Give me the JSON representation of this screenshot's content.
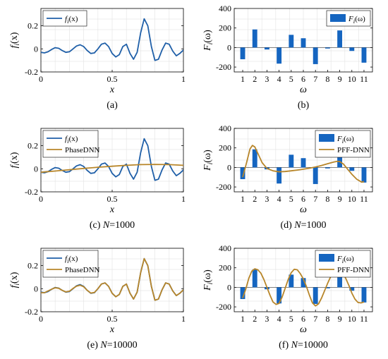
{
  "colors": {
    "target": "#1f5fa8",
    "approx": "#b8862a",
    "bar": "#1565c0",
    "grid": "#e6e6e6"
  },
  "chart_data": [
    {
      "type": "line",
      "caption": "(a)",
      "xlabel": "x",
      "ylabel_base": "f",
      "ylabel_sub": "i",
      "ylabel_tail": "(x)",
      "xlim": [
        0,
        1
      ],
      "ylim": [
        -0.2,
        0.35
      ],
      "xticks": [
        0,
        0.5,
        1
      ],
      "xtick_labels": [
        "0",
        "0.5",
        "1"
      ],
      "yticks": [
        -0.2,
        0,
        0.2
      ],
      "ytick_labels": [
        "-0.2",
        "0",
        "0.2"
      ],
      "grid": true,
      "legend": "top-left",
      "series": [
        {
          "label_base": "f",
          "label_sub": "i",
          "label_tail": "(x)",
          "color_key": "target",
          "x": [
            0,
            0.025,
            0.05,
            0.075,
            0.1,
            0.125,
            0.15,
            0.175,
            0.2,
            0.225,
            0.25,
            0.275,
            0.3,
            0.325,
            0.35,
            0.375,
            0.4,
            0.425,
            0.45,
            0.475,
            0.5,
            0.525,
            0.55,
            0.575,
            0.6,
            0.625,
            0.65,
            0.675,
            0.7,
            0.725,
            0.75,
            0.775,
            0.8,
            0.825,
            0.85,
            0.875,
            0.9,
            0.925,
            0.95,
            0.975,
            1
          ],
          "y": [
            -0.03,
            -0.035,
            -0.025,
            -0.005,
            0.01,
            0.005,
            -0.015,
            -0.03,
            -0.025,
            0,
            0.025,
            0.035,
            0.02,
            -0.015,
            -0.04,
            -0.035,
            0,
            0.04,
            0.05,
            0.02,
            -0.04,
            -0.07,
            -0.05,
            0.02,
            0.04,
            -0.04,
            -0.09,
            -0.03,
            0.14,
            0.26,
            0.2,
            0.02,
            -0.1,
            -0.09,
            -0.01,
            0.05,
            0.04,
            -0.02,
            -0.06,
            -0.04,
            -0.01
          ]
        }
      ]
    },
    {
      "type": "bar",
      "caption": "(b)",
      "xlabel": "ω",
      "ylabel_base": "F",
      "ylabel_sub": "i",
      "ylabel_tail": "(ω)",
      "categories": [
        "1",
        "2",
        "3",
        "4",
        "5",
        "6",
        "7",
        "8",
        "9",
        "10",
        "11"
      ],
      "xlim": [
        0.3,
        11.7
      ],
      "ylim": [
        -250,
        400
      ],
      "yticks": [
        -200,
        0,
        200,
        400
      ],
      "ytick_labels": [
        "-200",
        "0",
        "200",
        "400"
      ],
      "grid": true,
      "legend": "top-right",
      "series": [
        {
          "label_base": "F",
          "label_sub": "i",
          "label_tail": "(ω)",
          "color_key": "bar",
          "values": [
            -120,
            185,
            -20,
            -165,
            130,
            95,
            -170,
            -10,
            175,
            -35,
            -155
          ]
        }
      ]
    },
    {
      "type": "line",
      "caption_prefix": "(c) ",
      "caption_var": "N",
      "caption_suffix": "=1000",
      "xlabel": "x",
      "ylabel_base": "f",
      "ylabel_sub": "i",
      "ylabel_tail": "(x)",
      "xlim": [
        0,
        1
      ],
      "ylim": [
        -0.2,
        0.35
      ],
      "xticks": [
        0,
        0.5,
        1
      ],
      "xtick_labels": [
        "0",
        "0.5",
        "1"
      ],
      "yticks": [
        -0.2,
        0,
        0.2
      ],
      "ytick_labels": [
        "-0.2",
        "0",
        "0.2"
      ],
      "grid": true,
      "legend": "top-left",
      "series": [
        {
          "label_base": "f",
          "label_sub": "i",
          "label_tail": "(x)",
          "color_key": "target",
          "x": [
            0,
            0.025,
            0.05,
            0.075,
            0.1,
            0.125,
            0.15,
            0.175,
            0.2,
            0.225,
            0.25,
            0.275,
            0.3,
            0.325,
            0.35,
            0.375,
            0.4,
            0.425,
            0.45,
            0.475,
            0.5,
            0.525,
            0.55,
            0.575,
            0.6,
            0.625,
            0.65,
            0.675,
            0.7,
            0.725,
            0.75,
            0.775,
            0.8,
            0.825,
            0.85,
            0.875,
            0.9,
            0.925,
            0.95,
            0.975,
            1
          ],
          "y": [
            -0.03,
            -0.035,
            -0.025,
            -0.005,
            0.01,
            0.005,
            -0.015,
            -0.03,
            -0.025,
            0,
            0.025,
            0.035,
            0.02,
            -0.015,
            -0.04,
            -0.035,
            0,
            0.04,
            0.05,
            0.02,
            -0.04,
            -0.07,
            -0.05,
            0.02,
            0.04,
            -0.04,
            -0.09,
            -0.03,
            0.14,
            0.26,
            0.2,
            0.02,
            -0.1,
            -0.09,
            -0.01,
            0.05,
            0.04,
            -0.02,
            -0.06,
            -0.04,
            -0.01
          ]
        },
        {
          "label": "PhaseDNN",
          "color_key": "approx",
          "x": [
            0,
            0.1,
            0.2,
            0.3,
            0.4,
            0.5,
            0.6,
            0.7,
            0.8,
            0.9,
            1
          ],
          "y": [
            -0.03,
            -0.02,
            -0.008,
            0.003,
            0.013,
            0.022,
            0.03,
            0.036,
            0.038,
            0.036,
            0.03
          ]
        }
      ]
    },
    {
      "type": "bar",
      "caption_prefix": "(d) ",
      "caption_var": "N",
      "caption_suffix": "=1000",
      "xlabel": "ω",
      "ylabel_base": "F",
      "ylabel_sub": "i",
      "ylabel_tail": "(ω)",
      "categories": [
        "1",
        "2",
        "3",
        "4",
        "5",
        "6",
        "7",
        "8",
        "9",
        "10",
        "11"
      ],
      "xlim": [
        0.3,
        11.7
      ],
      "ylim": [
        -250,
        400
      ],
      "yticks": [
        -200,
        0,
        200,
        400
      ],
      "ytick_labels": [
        "-200",
        "0",
        "200",
        "400"
      ],
      "grid": true,
      "legend": "top-right",
      "series": [
        {
          "label_base": "F",
          "label_sub": "i",
          "label_tail": "(ω)",
          "color_key": "bar",
          "values": [
            -120,
            185,
            -20,
            -165,
            130,
            95,
            -170,
            -10,
            175,
            -35,
            -155
          ]
        }
      ],
      "curve": {
        "label": "PFF-DNN",
        "color_key": "approx",
        "x": [
          1,
          1.3,
          1.6,
          1.8,
          2.0,
          2.3,
          2.6,
          3.0,
          3.5,
          4.0,
          4.5,
          5.0,
          5.5,
          6.0,
          6.5,
          7.0,
          7.5,
          8.0,
          8.5,
          8.8,
          9.0,
          9.3,
          9.6,
          10.0,
          10.4,
          10.8,
          11.0
        ],
        "y": [
          -100,
          40,
          190,
          225,
          210,
          130,
          50,
          -10,
          -35,
          -45,
          -42,
          -35,
          -27,
          -18,
          -8,
          5,
          20,
          38,
          55,
          62,
          60,
          35,
          -10,
          -70,
          -120,
          -150,
          -145
        ]
      }
    },
    {
      "type": "line",
      "caption_prefix": "(e) ",
      "caption_var": "N",
      "caption_suffix": "=10000",
      "xlabel": "x",
      "ylabel_base": "f",
      "ylabel_sub": "i",
      "ylabel_tail": "(x)",
      "xlim": [
        0,
        1
      ],
      "ylim": [
        -0.2,
        0.35
      ],
      "xticks": [
        0,
        0.5,
        1
      ],
      "xtick_labels": [
        "0",
        "0.5",
        "1"
      ],
      "yticks": [
        -0.2,
        0,
        0.2
      ],
      "ytick_labels": [
        "-0.2",
        "0",
        "0.2"
      ],
      "grid": true,
      "legend": "top-left",
      "series": [
        {
          "label_base": "f",
          "label_sub": "i",
          "label_tail": "(x)",
          "color_key": "target",
          "x": [
            0,
            0.025,
            0.05,
            0.075,
            0.1,
            0.125,
            0.15,
            0.175,
            0.2,
            0.225,
            0.25,
            0.275,
            0.3,
            0.325,
            0.35,
            0.375,
            0.4,
            0.425,
            0.45,
            0.475,
            0.5,
            0.525,
            0.55,
            0.575,
            0.6,
            0.625,
            0.65,
            0.675,
            0.7,
            0.725,
            0.75,
            0.775,
            0.8,
            0.825,
            0.85,
            0.875,
            0.9,
            0.925,
            0.95,
            0.975,
            1
          ],
          "y": [
            -0.03,
            -0.035,
            -0.025,
            -0.005,
            0.01,
            0.005,
            -0.015,
            -0.03,
            -0.025,
            0,
            0.025,
            0.035,
            0.02,
            -0.015,
            -0.04,
            -0.035,
            0,
            0.04,
            0.05,
            0.02,
            -0.04,
            -0.07,
            -0.05,
            0.02,
            0.04,
            -0.04,
            -0.09,
            -0.03,
            0.14,
            0.26,
            0.2,
            0.02,
            -0.1,
            -0.09,
            -0.01,
            0.05,
            0.04,
            -0.02,
            -0.06,
            -0.04,
            -0.01
          ]
        },
        {
          "label": "PhaseDNN",
          "color_key": "approx",
          "x": [
            0,
            0.025,
            0.05,
            0.075,
            0.1,
            0.125,
            0.15,
            0.175,
            0.2,
            0.225,
            0.25,
            0.275,
            0.3,
            0.325,
            0.35,
            0.375,
            0.4,
            0.425,
            0.45,
            0.475,
            0.5,
            0.525,
            0.55,
            0.575,
            0.6,
            0.625,
            0.65,
            0.675,
            0.7,
            0.725,
            0.75,
            0.775,
            0.8,
            0.825,
            0.85,
            0.875,
            0.9,
            0.925,
            0.95,
            0.975,
            1
          ],
          "y": [
            -0.035,
            -0.035,
            -0.02,
            -0.005,
            0.008,
            0.003,
            -0.015,
            -0.028,
            -0.022,
            0.002,
            0.022,
            0.03,
            0.017,
            -0.015,
            -0.038,
            -0.033,
            0,
            0.04,
            0.05,
            0.02,
            -0.04,
            -0.07,
            -0.05,
            0.02,
            0.04,
            -0.04,
            -0.09,
            -0.03,
            0.14,
            0.26,
            0.2,
            0.02,
            -0.1,
            -0.09,
            -0.01,
            0.05,
            0.04,
            -0.02,
            -0.06,
            -0.04,
            -0.01
          ]
        }
      ]
    },
    {
      "type": "bar",
      "caption_prefix": "(f) ",
      "caption_var": "N",
      "caption_suffix": "=10000",
      "xlabel": "ω",
      "ylabel_base": "F",
      "ylabel_sub": "i",
      "ylabel_tail": "(ω)",
      "categories": [
        "1",
        "2",
        "3",
        "4",
        "5",
        "6",
        "7",
        "8",
        "9",
        "10",
        "11"
      ],
      "xlim": [
        0.3,
        11.7
      ],
      "ylim": [
        -250,
        400
      ],
      "yticks": [
        -200,
        0,
        200,
        400
      ],
      "ytick_labels": [
        "-200",
        "0",
        "200",
        "400"
      ],
      "grid": true,
      "legend": "top-right",
      "series": [
        {
          "label_base": "F",
          "label_sub": "i",
          "label_tail": "(ω)",
          "color_key": "bar",
          "values": [
            -120,
            185,
            -20,
            -165,
            130,
            95,
            -170,
            -10,
            175,
            -35,
            -155
          ]
        }
      ],
      "curve": {
        "label": "PFF-DNN",
        "color_key": "approx",
        "x": [
          1,
          1.25,
          1.5,
          1.75,
          2,
          2.25,
          2.5,
          2.75,
          3,
          3.25,
          3.5,
          3.75,
          4,
          4.25,
          4.5,
          4.75,
          5,
          5.25,
          5.5,
          5.75,
          6,
          6.25,
          6.5,
          6.75,
          7,
          7.25,
          7.5,
          7.75,
          8,
          8.25,
          8.5,
          8.75,
          9,
          9.25,
          9.5,
          9.75,
          10,
          10.25,
          10.5,
          10.75,
          11
        ],
        "y": [
          -110,
          -20,
          90,
          165,
          190,
          180,
          145,
          80,
          0,
          -80,
          -150,
          -175,
          -165,
          -100,
          -10,
          80,
          150,
          185,
          180,
          140,
          85,
          10,
          -80,
          -160,
          -190,
          -170,
          -110,
          -35,
          40,
          110,
          165,
          190,
          185,
          150,
          90,
          20,
          -60,
          -120,
          -155,
          -160,
          -150
        ]
      }
    }
  ]
}
